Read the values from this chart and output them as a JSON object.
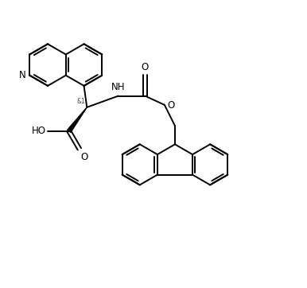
{
  "bg_color": "#ffffff",
  "line_color": "#000000",
  "lw": 1.4,
  "fig_width": 3.86,
  "fig_height": 3.62,
  "dpi": 100,
  "xlim": [
    0,
    10
  ],
  "ylim": [
    0,
    9.5
  ]
}
